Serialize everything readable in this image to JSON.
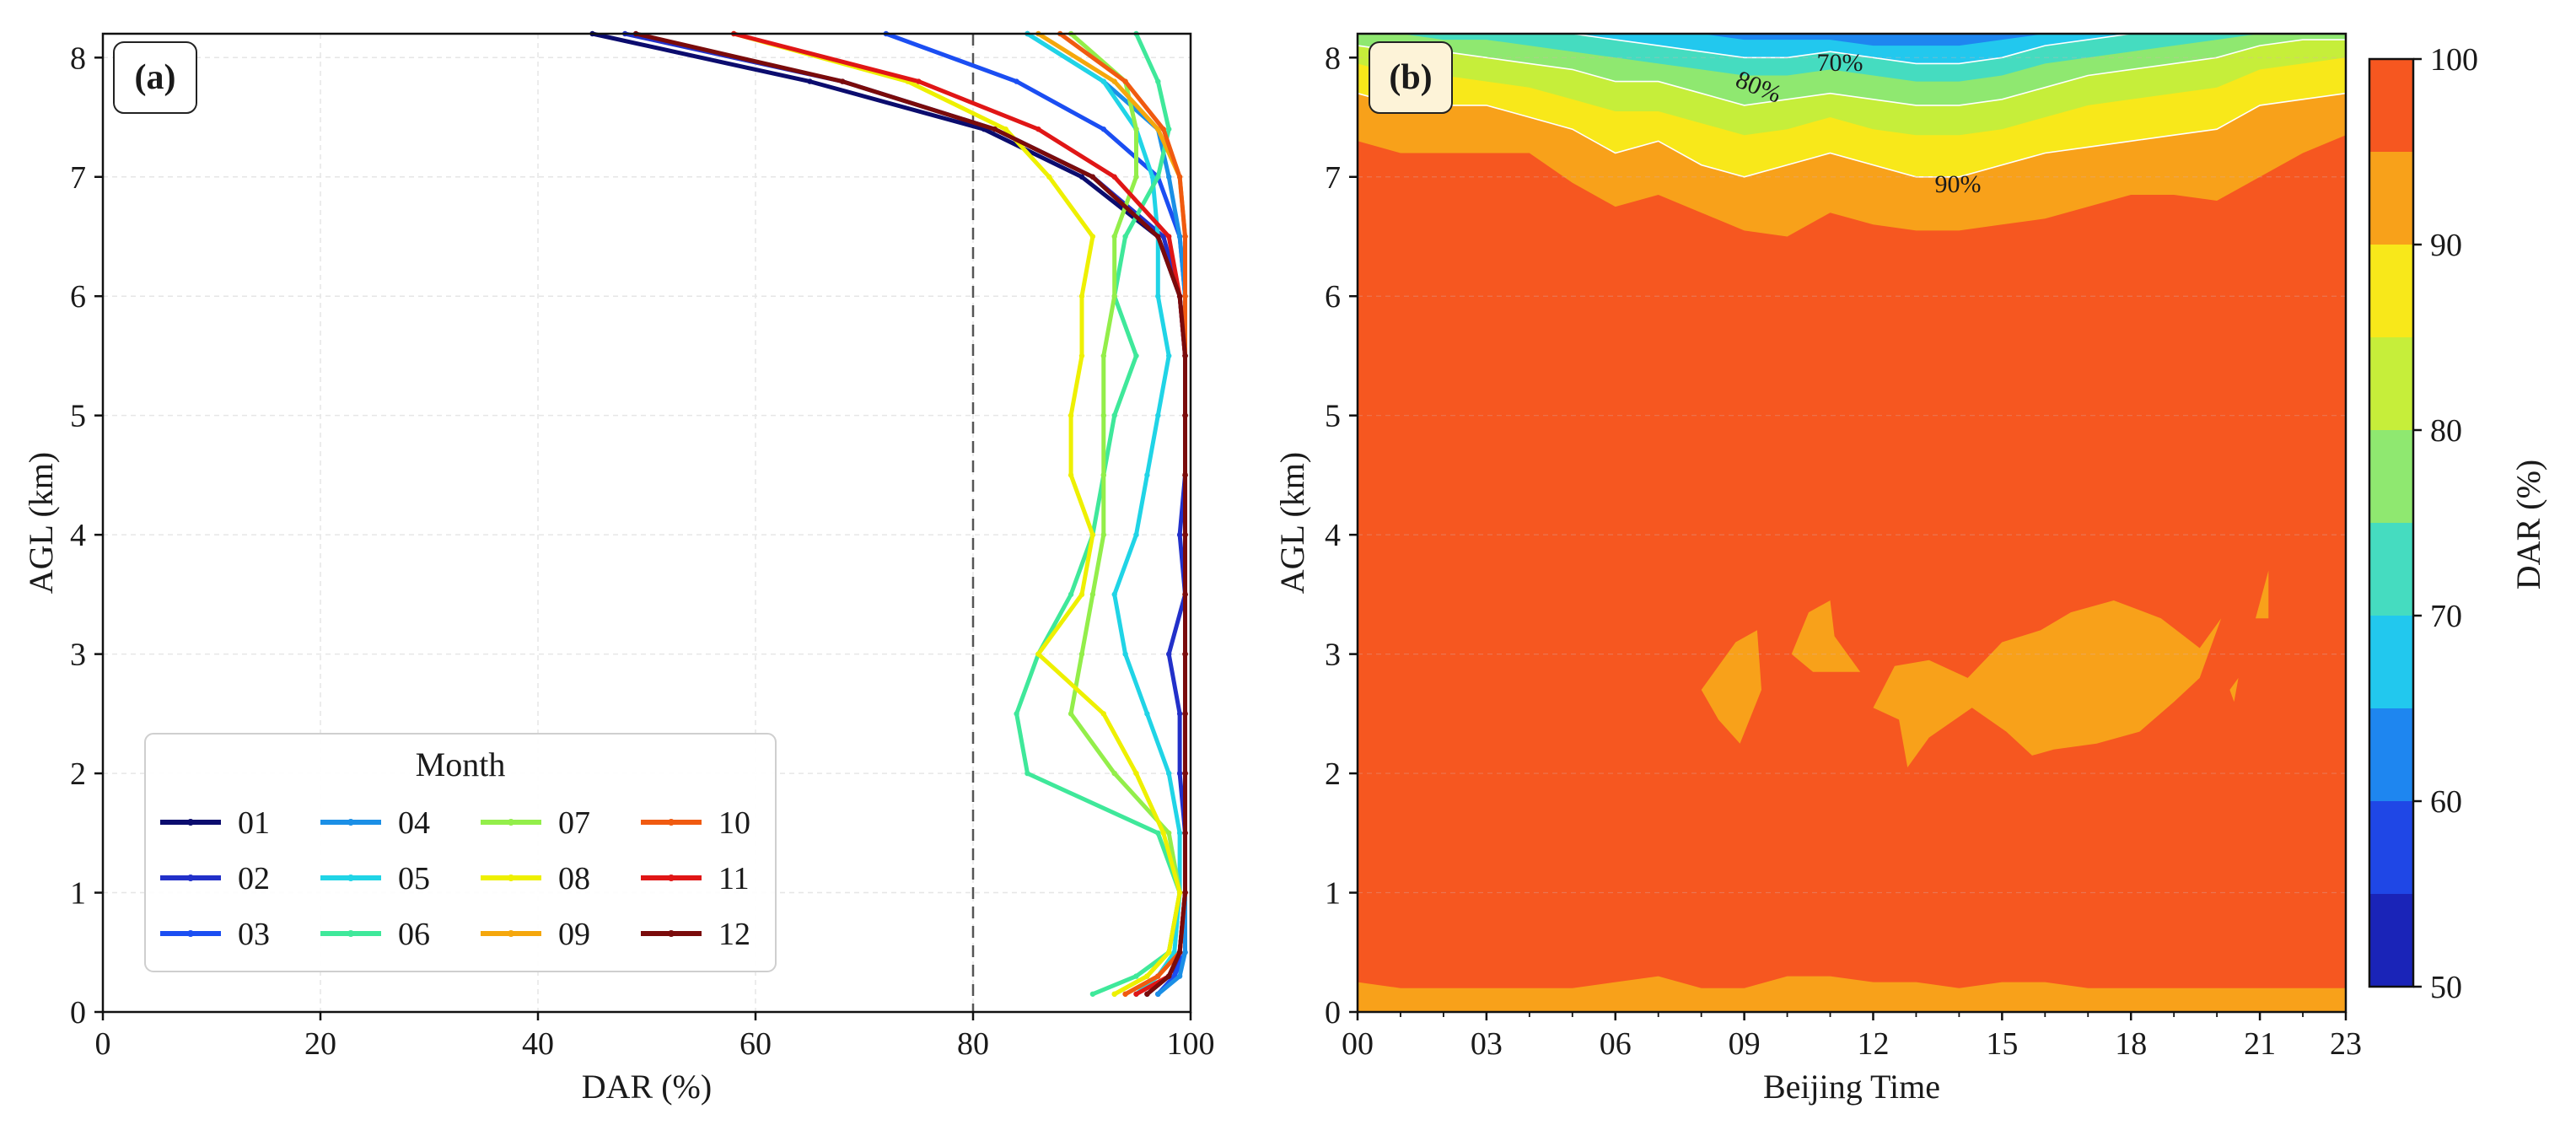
{
  "chart_data": [
    {
      "type": "line",
      "panel_label": "(a)",
      "xlabel": "DAR (%)",
      "ylabel": "AGL (km)",
      "xlim": [
        0,
        100
      ],
      "ylim": [
        0,
        8.2
      ],
      "x_ticks": [
        0,
        20,
        40,
        60,
        80,
        100
      ],
      "y_ticks": [
        0,
        1,
        2,
        3,
        4,
        5,
        6,
        7,
        8
      ],
      "grid": true,
      "reference_line": {
        "x": 80,
        "style": "dashed"
      },
      "legend": {
        "title": "Month",
        "placement": "lower-left"
      },
      "altitude_km": [
        0.15,
        0.3,
        0.5,
        1.0,
        1.5,
        2.0,
        2.5,
        3.0,
        3.5,
        4.0,
        4.5,
        5.0,
        5.5,
        6.0,
        6.5,
        7.0,
        7.4,
        7.8,
        8.2
      ],
      "series": [
        {
          "name": "01",
          "color": "#0b0c6e",
          "values": [
            96,
            98,
            99,
            99.5,
            99.5,
            99.5,
            99.5,
            99.5,
            99.5,
            99.5,
            99.5,
            99.5,
            99.5,
            99,
            97,
            90,
            81,
            65,
            45
          ]
        },
        {
          "name": "02",
          "color": "#2230c9",
          "values": [
            97,
            98.5,
            99,
            99.5,
            99.5,
            99,
            99,
            98,
            99.5,
            99,
            99.5,
            99.5,
            99.5,
            99,
            97.5,
            91,
            82,
            68,
            48
          ]
        },
        {
          "name": "03",
          "color": "#1b4ef2",
          "values": [
            97,
            98.5,
            99.5,
            99.5,
            99.5,
            99.5,
            99.5,
            99.5,
            99.5,
            99.5,
            99.5,
            99.5,
            99.5,
            99.5,
            99,
            97,
            92,
            84,
            72
          ]
        },
        {
          "name": "04",
          "color": "#1b8fe6",
          "values": [
            97,
            99,
            99.5,
            99.5,
            99.5,
            99.5,
            99.5,
            99.5,
            99.5,
            99.5,
            99.5,
            99.5,
            99.5,
            99.5,
            99,
            98,
            97,
            92,
            85
          ]
        },
        {
          "name": "05",
          "color": "#20d4e6",
          "values": [
            95,
            97,
            98.5,
            99,
            99,
            98,
            96,
            94,
            93,
            95,
            96,
            97,
            98,
            97,
            97,
            96.5,
            95,
            92,
            85
          ]
        },
        {
          "name": "06",
          "color": "#3fe89a",
          "values": [
            91,
            95,
            98,
            99,
            97,
            85,
            84,
            86,
            89,
            91,
            92,
            93,
            95,
            93,
            94,
            97,
            98,
            97,
            95
          ]
        },
        {
          "name": "07",
          "color": "#93ee4a",
          "values": [
            93,
            96,
            98,
            99,
            98,
            93,
            89,
            90,
            91,
            92,
            92,
            92,
            92,
            93,
            93,
            95,
            95,
            94,
            89
          ]
        },
        {
          "name": "08",
          "color": "#eef000",
          "values": [
            93,
            96,
            98,
            99,
            97.5,
            95,
            92,
            86,
            90,
            91,
            89,
            89,
            90,
            90,
            91,
            87,
            83,
            74,
            58
          ]
        },
        {
          "name": "09",
          "color": "#f5a70c",
          "values": [
            94,
            97,
            99,
            99.5,
            99.5,
            99.5,
            99.5,
            99.5,
            99.5,
            99.5,
            99.5,
            99.5,
            99.5,
            99.5,
            99.5,
            99,
            97,
            93,
            86
          ]
        },
        {
          "name": "10",
          "color": "#f05a10",
          "values": [
            94,
            97,
            99,
            99.5,
            99.5,
            99.5,
            99.5,
            99.5,
            99.5,
            99.5,
            99.5,
            99.5,
            99.5,
            99.5,
            99.5,
            99,
            97.5,
            94,
            88
          ]
        },
        {
          "name": "11",
          "color": "#e01616",
          "values": [
            95,
            98,
            99,
            99.5,
            99.5,
            99.5,
            99.5,
            99.5,
            99.5,
            99.5,
            99.5,
            99.5,
            99.5,
            99,
            98,
            93,
            86,
            75,
            58
          ]
        },
        {
          "name": "12",
          "color": "#7a0b0b",
          "values": [
            96,
            98,
            99,
            99.5,
            99.5,
            99.5,
            99.5,
            99.5,
            99.5,
            99.5,
            99.5,
            99.5,
            99.5,
            99,
            97,
            91,
            82,
            68,
            49
          ]
        }
      ]
    },
    {
      "type": "heatmap",
      "subtype": "filled-contour",
      "panel_label": "(b)",
      "xlabel": "Beijing Time",
      "ylabel": "AGL (km)",
      "xlim": [
        0,
        23
      ],
      "ylim": [
        0,
        8.2
      ],
      "x_tick_labels": [
        "00",
        "03",
        "06",
        "09",
        "12",
        "15",
        "18",
        "21",
        "23"
      ],
      "x_tick_values": [
        0,
        3,
        6,
        9,
        12,
        15,
        18,
        21,
        23
      ],
      "y_ticks": [
        0,
        1,
        2,
        3,
        4,
        5,
        6,
        7,
        8
      ],
      "contour_labels": [
        "70%",
        "80%",
        "90%"
      ],
      "colorbar": {
        "label": "DAR (%)",
        "range": [
          50,
          100
        ],
        "ticks": [
          50,
          60,
          70,
          80,
          90,
          100
        ],
        "levels": [
          50,
          55,
          60,
          65,
          70,
          75,
          80,
          85,
          90,
          95,
          100
        ],
        "colors": [
          "#1a24b8",
          "#1f47e6",
          "#1e86f0",
          "#22c8ee",
          "#45dcc0",
          "#8fe870",
          "#c6ee3a",
          "#f8e81a",
          "#f8a11a",
          "#f65720",
          "#bb1a1a"
        ]
      },
      "hours": [
        0,
        1,
        2,
        3,
        4,
        5,
        6,
        7,
        8,
        9,
        10,
        11,
        12,
        13,
        14,
        15,
        16,
        17,
        18,
        19,
        20,
        21,
        22,
        23
      ],
      "contour_tops_km": {
        "95": [
          7.3,
          7.2,
          7.2,
          7.2,
          7.2,
          6.95,
          6.75,
          6.85,
          6.7,
          6.55,
          6.5,
          6.7,
          6.6,
          6.55,
          6.55,
          6.6,
          6.65,
          6.75,
          6.85,
          6.85,
          6.8,
          7.0,
          7.2,
          7.35
        ],
        "90": [
          7.7,
          7.6,
          7.6,
          7.6,
          7.5,
          7.4,
          7.2,
          7.3,
          7.1,
          7.0,
          7.1,
          7.2,
          7.1,
          7.0,
          7.0,
          7.1,
          7.2,
          7.25,
          7.3,
          7.35,
          7.4,
          7.6,
          7.65,
          7.7
        ],
        "85": [
          7.95,
          7.85,
          7.85,
          7.8,
          7.75,
          7.65,
          7.55,
          7.55,
          7.45,
          7.35,
          7.4,
          7.5,
          7.4,
          7.35,
          7.35,
          7.4,
          7.5,
          7.6,
          7.65,
          7.7,
          7.75,
          7.9,
          7.95,
          8.0
        ],
        "80": [
          8.1,
          8.05,
          8.05,
          8.0,
          7.95,
          7.9,
          7.8,
          7.8,
          7.7,
          7.6,
          7.65,
          7.7,
          7.65,
          7.6,
          7.6,
          7.65,
          7.75,
          7.85,
          7.9,
          7.95,
          8.0,
          8.1,
          8.15,
          8.15
        ],
        "75": [
          8.2,
          8.2,
          8.15,
          8.15,
          8.1,
          8.05,
          8.0,
          7.95,
          7.9,
          7.85,
          7.85,
          7.9,
          7.85,
          7.8,
          7.8,
          7.85,
          7.95,
          8.0,
          8.05,
          8.1,
          8.15,
          8.2,
          8.2,
          8.2
        ],
        "70": [
          8.2,
          8.2,
          8.2,
          8.2,
          8.2,
          8.2,
          8.15,
          8.1,
          8.05,
          8.0,
          8.0,
          8.05,
          8.0,
          7.95,
          7.95,
          8.0,
          8.1,
          8.15,
          8.2,
          8.2,
          8.2,
          8.2,
          8.2,
          8.2
        ],
        "65": [
          8.2,
          8.2,
          8.2,
          8.2,
          8.2,
          8.2,
          8.2,
          8.2,
          8.2,
          8.15,
          8.15,
          8.15,
          8.1,
          8.1,
          8.1,
          8.15,
          8.2,
          8.2,
          8.2,
          8.2,
          8.2,
          8.2,
          8.2,
          8.2
        ]
      },
      "base_layer_km": [
        0.25,
        0.2,
        0.2,
        0.2,
        0.2,
        0.2,
        0.25,
        0.3,
        0.2,
        0.2,
        0.3,
        0.3,
        0.25,
        0.25,
        0.2,
        0.25,
        0.25,
        0.2,
        0.2,
        0.2,
        0.2,
        0.2,
        0.2,
        0.2
      ],
      "islands_90_95": [
        [
          [
            8.0,
            2.7
          ],
          [
            8.8,
            3.1
          ],
          [
            9.3,
            3.2
          ],
          [
            9.4,
            2.7
          ],
          [
            8.9,
            2.25
          ],
          [
            8.4,
            2.45
          ]
        ],
        [
          [
            10.1,
            3.0
          ],
          [
            10.5,
            3.35
          ],
          [
            11.0,
            3.45
          ],
          [
            11.1,
            3.15
          ],
          [
            11.7,
            2.85
          ],
          [
            10.6,
            2.85
          ]
        ],
        [
          [
            12.0,
            2.55
          ],
          [
            12.5,
            2.9
          ],
          [
            13.3,
            2.95
          ],
          [
            14.2,
            2.8
          ],
          [
            15.0,
            3.1
          ],
          [
            15.9,
            3.2
          ],
          [
            16.6,
            3.35
          ],
          [
            17.6,
            3.45
          ],
          [
            18.7,
            3.3
          ],
          [
            19.6,
            3.05
          ],
          [
            20.1,
            3.3
          ],
          [
            19.6,
            2.8
          ],
          [
            19.0,
            2.6
          ],
          [
            18.2,
            2.35
          ],
          [
            17.2,
            2.25
          ],
          [
            16.2,
            2.2
          ],
          [
            15.7,
            2.15
          ],
          [
            15.1,
            2.35
          ],
          [
            14.3,
            2.55
          ],
          [
            13.3,
            2.3
          ],
          [
            12.8,
            2.05
          ],
          [
            12.6,
            2.45
          ]
        ],
        [
          [
            20.9,
            3.3
          ],
          [
            21.2,
            3.7
          ],
          [
            21.2,
            3.3
          ]
        ],
        [
          [
            20.3,
            2.7
          ],
          [
            20.4,
            2.6
          ],
          [
            20.5,
            2.8
          ]
        ]
      ]
    }
  ]
}
